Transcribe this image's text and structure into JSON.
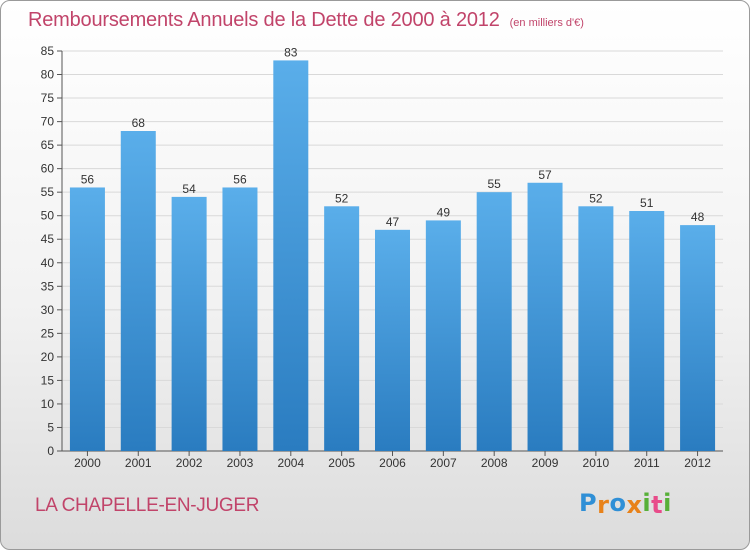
{
  "chart_data": {
    "type": "bar",
    "title": "Remboursements Annuels de la Dette de 2000 à 2012",
    "subtitle": "(en milliers d'€)",
    "categories": [
      "2000",
      "2001",
      "2002",
      "2003",
      "2004",
      "2005",
      "2006",
      "2007",
      "2008",
      "2009",
      "2010",
      "2011",
      "2012"
    ],
    "values": [
      56,
      68,
      54,
      56,
      83,
      52,
      47,
      49,
      55,
      57,
      52,
      51,
      48
    ],
    "ylim": [
      0,
      85
    ],
    "yticks": [
      0,
      5,
      10,
      15,
      20,
      25,
      30,
      35,
      40,
      45,
      50,
      55,
      60,
      65,
      70,
      75,
      80,
      85
    ],
    "xlabel": "",
    "ylabel": "",
    "grid": true,
    "bar_color": "#3f96d9"
  },
  "footer": {
    "commune": "LA CHAPELLE-EN-JUGER",
    "logo_letters": [
      "P",
      "r",
      "o",
      "x",
      "i",
      "t",
      "i"
    ],
    "logo_colors": [
      "#2f8fd6",
      "#e8821a",
      "#2f8fd6",
      "#e8821a",
      "#57b038",
      "#e84c8a",
      "#57b038"
    ]
  },
  "colors": {
    "accent": "#c1446a",
    "grid": "#d9d9d9",
    "axis": "#555555"
  }
}
